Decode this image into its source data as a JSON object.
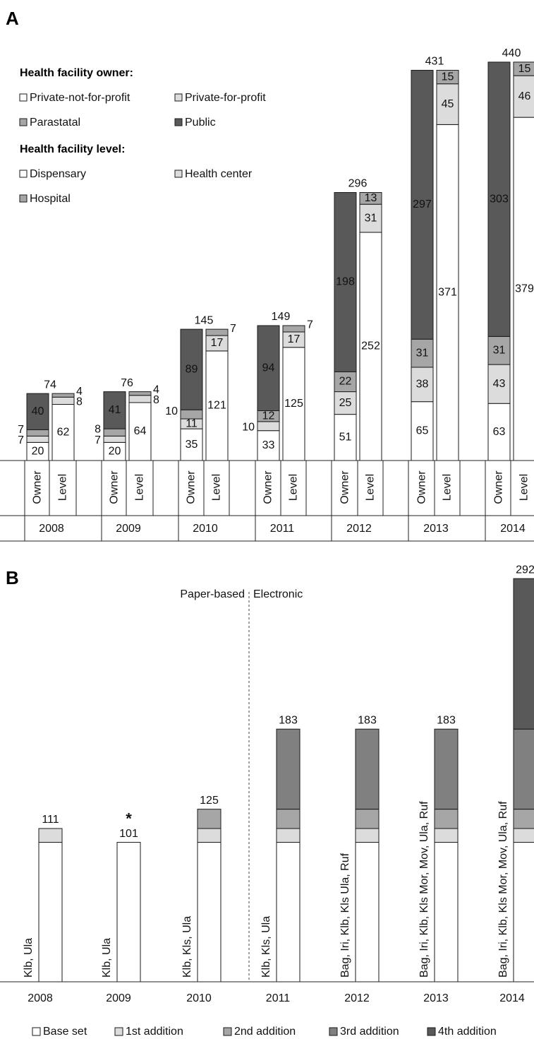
{
  "colors": {
    "white": "#ffffff",
    "light": "#dcdcdc",
    "mid": "#a6a6a6",
    "darkmid": "#808080",
    "dark": "#595959",
    "border": "#1a1a1a"
  },
  "chart_data": [
    {
      "panel": "A",
      "type": "bar",
      "stacked": true,
      "legend_groups": [
        {
          "title": "Health facility owner:",
          "items": [
            {
              "label": "Private-not-for-profit",
              "color": "white"
            },
            {
              "label": "Private-for-profit",
              "color": "light"
            },
            {
              "label": "Parastatal",
              "color": "mid"
            },
            {
              "label": "Public",
              "color": "dark"
            }
          ]
        },
        {
          "title": "Health facility level:",
          "items": [
            {
              "label": "Dispensary",
              "color": "white"
            },
            {
              "label": "Health center",
              "color": "light"
            },
            {
              "label": "Hospital",
              "color": "mid"
            }
          ]
        }
      ],
      "sub_labels": [
        "Owner",
        "Level"
      ],
      "groups": [
        {
          "year": "2008",
          "total": "74",
          "owner": {
            "values": [
              20,
              7,
              7,
              40
            ],
            "labels": [
              "20",
              "7",
              "7",
              "40"
            ]
          },
          "level": {
            "values": [
              62,
              8,
              4
            ],
            "labels": [
              "62",
              "8",
              "4"
            ]
          }
        },
        {
          "year": "2009",
          "total": "76",
          "owner": {
            "values": [
              20,
              7,
              8,
              41
            ],
            "labels": [
              "20",
              "7",
              "8",
              "41"
            ]
          },
          "level": {
            "values": [
              64,
              8,
              4
            ],
            "labels": [
              "64",
              "8",
              "4"
            ]
          }
        },
        {
          "year": "2010",
          "total": "145",
          "owner": {
            "values": [
              35,
              11,
              10,
              89
            ],
            "labels": [
              "35",
              "11",
              "10",
              "89"
            ]
          },
          "level": {
            "values": [
              121,
              17,
              7
            ],
            "labels": [
              "121",
              "17",
              "7"
            ]
          }
        },
        {
          "year": "2011",
          "total": "149",
          "owner": {
            "values": [
              33,
              10,
              12,
              94
            ],
            "labels": [
              "33",
              "10",
              "12",
              "94"
            ]
          },
          "level": {
            "values": [
              125,
              17,
              7
            ],
            "labels": [
              "125",
              "17",
              "7"
            ]
          }
        },
        {
          "year": "2012",
          "total": "296",
          "owner": {
            "values": [
              51,
              25,
              22,
              198
            ],
            "labels": [
              "51",
              "25",
              "22",
              "198"
            ]
          },
          "level": {
            "values": [
              252,
              31,
              13
            ],
            "labels": [
              "252",
              "31",
              "13"
            ]
          }
        },
        {
          "year": "2013",
          "total": "431",
          "owner": {
            "values": [
              65,
              38,
              31,
              297
            ],
            "labels": [
              "65",
              "38",
              "31",
              "297"
            ]
          },
          "level": {
            "values": [
              371,
              45,
              15
            ],
            "labels": [
              "371",
              "45",
              "15"
            ]
          }
        },
        {
          "year": "2014",
          "total": "440",
          "owner": {
            "values": [
              63,
              43,
              31,
              303
            ],
            "labels": [
              "63",
              "43",
              "31",
              "303"
            ]
          },
          "level": {
            "values": [
              379,
              46,
              15
            ],
            "labels": [
              "379",
              "46",
              "15"
            ]
          }
        }
      ]
    },
    {
      "panel": "B",
      "type": "bar",
      "stacked": true,
      "series": [
        {
          "name": "Base set",
          "color": "white"
        },
        {
          "name": "1st addition",
          "color": "light"
        },
        {
          "name": "2nd addition",
          "color": "mid"
        },
        {
          "name": "3rd addition",
          "color": "darkmid"
        },
        {
          "name": "4th addition",
          "color": "dark"
        }
      ],
      "divider_labels": [
        "Paper-based",
        "Electronic"
      ],
      "categories": [
        "2008",
        "2009",
        "2010",
        "2011",
        "2012",
        "2013",
        "2014"
      ],
      "stacks": [
        [
          101,
          10,
          0,
          0,
          0
        ],
        [
          101,
          0,
          0,
          0,
          0
        ],
        [
          101,
          10,
          14,
          0,
          0
        ],
        [
          101,
          10,
          14,
          58,
          0
        ],
        [
          101,
          10,
          14,
          58,
          0
        ],
        [
          101,
          10,
          14,
          58,
          0
        ],
        [
          101,
          10,
          14,
          58,
          109
        ]
      ],
      "totals": [
        "111",
        "101",
        "125",
        "183",
        "183",
        "183",
        "292"
      ],
      "asterisk": "*",
      "site_labels": [
        "Klb, Ula",
        "Klb, Ula",
        "Klb, Kls, Ula",
        "Klb, Kls, Ula",
        "Bag, Iri, Klb, Kls Ula, Ruf",
        "Bag, Iri, Klb, Kls Mor, Mov, Ula, Ruf",
        "Bag, Iri, Klb, Kls Mor, Mov, Ula, Ruf"
      ]
    }
  ]
}
